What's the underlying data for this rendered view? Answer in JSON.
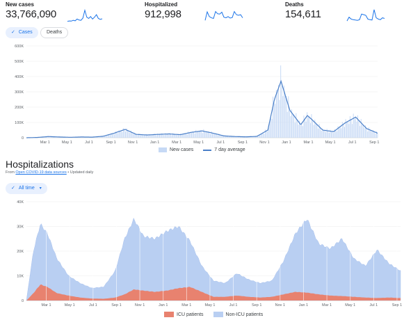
{
  "stats": [
    {
      "label": "New cases",
      "value": "33,766,090",
      "spark": [
        0.02,
        0.05,
        0.04,
        0.1,
        0.06,
        0.2,
        0.12,
        0.1,
        0.28,
        0.9,
        0.35,
        0.25,
        0.4,
        0.2,
        0.35,
        0.55,
        0.25,
        0.18,
        0.22
      ]
    },
    {
      "label": "Hospitalized",
      "value": "912,998",
      "spark": [
        0.1,
        0.78,
        0.4,
        0.3,
        0.25,
        0.8,
        0.62,
        0.6,
        0.75,
        0.35,
        0.3,
        0.4,
        0.28,
        0.32,
        0.8,
        0.55,
        0.5,
        0.55,
        0.3
      ]
    },
    {
      "label": "Deaths",
      "value": "154,611",
      "spark": [
        0.05,
        0.35,
        0.2,
        0.15,
        0.12,
        0.1,
        0.15,
        0.6,
        0.55,
        0.5,
        0.2,
        0.15,
        0.12,
        0.95,
        0.3,
        0.2,
        0.15,
        0.3,
        0.25
      ]
    }
  ],
  "chips": {
    "cases": "Cases",
    "deaths": "Deaths",
    "all_time": "All time"
  },
  "cases_chart": {
    "y_ticks": [
      "0",
      "100K",
      "200K",
      "300K",
      "400K",
      "500K",
      "600K"
    ],
    "x_ticks": [
      "Mar 1",
      "May 1",
      "Jul 1",
      "Sep 1",
      "Nov 1",
      "Jan 1",
      "Mar 1",
      "May 1",
      "Jul 1",
      "Sep 1",
      "Nov 1",
      "Jan 1",
      "Mar 1",
      "May 1",
      "Jul 1",
      "Sep 1"
    ],
    "legend_bars": "New cases",
    "legend_line": "7 day average"
  },
  "hospitalizations": {
    "title": "Hospitalizations",
    "source_prefix": "From ",
    "source_link": "Open COVID-19 data sources",
    "source_suffix": " • Updated daily",
    "y_ticks": [
      "0",
      "10K",
      "20K",
      "30K",
      "40K"
    ],
    "x_ticks": [
      "Mar 1",
      "May 1",
      "Jul 1",
      "Sep 1",
      "Nov 1",
      "Jan 1",
      "Mar 1",
      "May 1",
      "Jul 1",
      "Sep 1",
      "Nov 1",
      "Jan 1",
      "Mar 1",
      "May 1",
      "Jul 1",
      "Sep 1"
    ],
    "legend_icu": "ICU patients",
    "legend_non_icu": "Non-ICU patients"
  },
  "colors": {
    "accent": "#1a73e8",
    "line": "#4a7fc8",
    "bar_light": "#c6d9f5",
    "icu": "#e8826f",
    "non_icu": "#b9cff2"
  },
  "chart_data": [
    {
      "type": "line",
      "title": "New cases",
      "ylim": [
        0,
        600000
      ],
      "x_tick_labels": [
        "Mar 1",
        "May 1",
        "Jul 1",
        "Sep 1",
        "Nov 1",
        "Jan 1",
        "Mar 1",
        "May 1",
        "Jul 1",
        "Sep 1",
        "Nov 1",
        "Jan 1",
        "Mar 1",
        "May 1",
        "Jul 1",
        "Sep 1"
      ],
      "x": [
        0,
        0.5,
        1,
        1.5,
        2,
        2.5,
        3,
        3.5,
        4,
        4.5,
        5,
        5.5,
        6,
        6.5,
        7,
        7.5,
        8,
        8.5,
        9,
        9.5,
        10,
        10.5,
        11,
        11.3,
        11.6,
        12,
        12.5,
        12.8,
        13,
        13.5,
        14,
        14.5,
        15,
        15.5,
        16
      ],
      "series": [
        {
          "name": "7 day average",
          "values": [
            0,
            2000,
            8000,
            5000,
            3000,
            5000,
            4000,
            10000,
            30000,
            55000,
            22000,
            18000,
            22000,
            25000,
            20000,
            35000,
            45000,
            30000,
            12000,
            8000,
            6000,
            9000,
            50000,
            250000,
            370000,
            180000,
            85000,
            145000,
            120000,
            50000,
            40000,
            95000,
            135000,
            60000,
            30000
          ]
        }
      ]
    },
    {
      "type": "area",
      "title": "Hospitalizations",
      "ylim": [
        0,
        40000
      ],
      "x_tick_labels": [
        "Mar 1",
        "May 1",
        "Jul 1",
        "Sep 1",
        "Nov 1",
        "Jan 1",
        "Mar 1",
        "May 1",
        "Jul 1",
        "Sep 1",
        "Nov 1",
        "Jan 1",
        "Mar 1",
        "May 1",
        "Jul 1",
        "Sep 1"
      ],
      "x": [
        0,
        0.3,
        0.6,
        0.9,
        1.3,
        1.8,
        2.3,
        2.8,
        3.3,
        3.8,
        4.2,
        4.6,
        5,
        5.5,
        6,
        6.5,
        7,
        7.5,
        8,
        8.5,
        9,
        9.5,
        10,
        10.5,
        11,
        11.5,
        12,
        12.5,
        13,
        13.5,
        14,
        14.5,
        15,
        15.5,
        16
      ],
      "series": [
        {
          "name": "ICU patients",
          "values": [
            0,
            3000,
            6500,
            5500,
            3000,
            2000,
            1200,
            800,
            700,
            1200,
            2500,
            4500,
            4000,
            3500,
            4000,
            5000,
            5500,
            3500,
            1500,
            1500,
            2000,
            1500,
            1200,
            1500,
            2500,
            3500,
            3200,
            2500,
            2000,
            1800,
            1500,
            1200,
            1000,
            1200,
            1000
          ]
        },
        {
          "name": "Non-ICU patients",
          "values": [
            0,
            20000,
            31000,
            27000,
            17000,
            10000,
            7000,
            5000,
            5500,
            12000,
            25000,
            33000,
            26000,
            25000,
            28000,
            30000,
            24000,
            14000,
            8000,
            7000,
            11000,
            8500,
            7000,
            8000,
            16000,
            27000,
            33000,
            23000,
            21000,
            25000,
            17000,
            14000,
            20500,
            15000,
            12000
          ]
        }
      ]
    }
  ]
}
